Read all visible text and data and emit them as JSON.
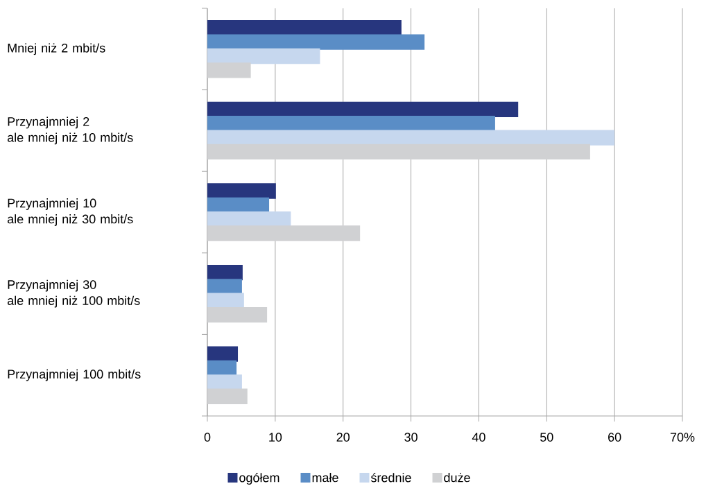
{
  "chart_data": {
    "type": "bar",
    "orientation": "horizontal",
    "categories": [
      "Mniej niż 2 mbit/s",
      "Przynajmniej 2\nale mniej niż 10 mbit/s",
      "Przynajmniej 10\nale mniej niż 30 mbit/s",
      "Przynajmniej 30\nale mniej niż 100 mbit/s",
      "Przynajmniej 100 mbit/s"
    ],
    "series": [
      {
        "name": "ogółem",
        "color": "#27367e",
        "values": [
          28.6,
          45.8,
          10.1,
          5.2,
          4.5
        ]
      },
      {
        "name": "małe",
        "color": "#5a8dc6",
        "values": [
          32.0,
          42.4,
          9.1,
          5.1,
          4.3
        ]
      },
      {
        "name": "średnie",
        "color": "#c6d7ee",
        "values": [
          16.6,
          60.0,
          12.3,
          5.4,
          5.1
        ]
      },
      {
        "name": "duże",
        "color": "#d0d1d3",
        "values": [
          6.4,
          56.4,
          22.5,
          8.8,
          5.9
        ]
      }
    ],
    "xlim": [
      0,
      70
    ],
    "xticks": [
      0,
      10,
      20,
      30,
      40,
      50,
      60,
      {
        "value": 70,
        "label": "70%"
      }
    ],
    "grid": "x",
    "legend": "bottom"
  }
}
